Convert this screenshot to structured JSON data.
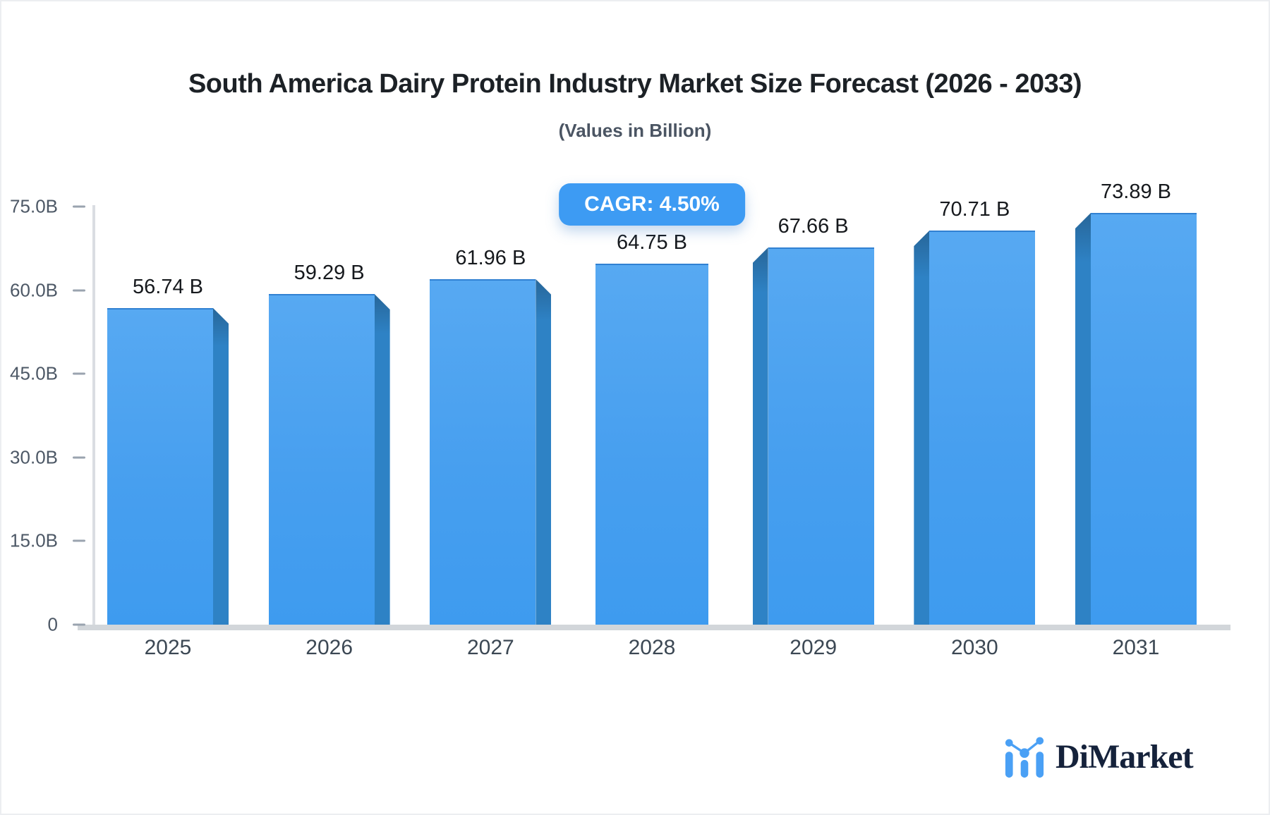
{
  "branding": {
    "logo_text": "DiMarket"
  },
  "chart_data": {
    "type": "bar",
    "title": "South America Dairy Protein Industry Market Size Forecast (2026 - 2033)",
    "subtitle": "(Values in Billion)",
    "annotation": "CAGR: 4.50%",
    "categories": [
      "2025",
      "2026",
      "2027",
      "2028",
      "2029",
      "2030",
      "2031"
    ],
    "values": [
      56.74,
      59.29,
      61.96,
      64.75,
      67.66,
      70.71,
      73.89
    ],
    "value_labels": [
      "56.74 B",
      "59.29 B",
      "61.96 B",
      "64.75 B",
      "67.66 B",
      "70.71 B",
      "73.89 B"
    ],
    "xlabel": "",
    "ylabel": "",
    "ylim": [
      0,
      75
    ],
    "yticks": [
      {
        "value": 75,
        "label": "75.0B"
      },
      {
        "value": 60,
        "label": "60.0B"
      },
      {
        "value": 45,
        "label": "45.0B"
      },
      {
        "value": 30,
        "label": "30.0B"
      },
      {
        "value": 15,
        "label": "15.0B"
      },
      {
        "value": 0,
        "label": "0"
      }
    ],
    "grid": false,
    "legend": false,
    "bar_style": "3d-beveled",
    "colors": {
      "bar_face_top": "#57a9f2",
      "bar_face_bottom": "#3e9bef",
      "bar_side": "#2e82c5",
      "bar_edge": "#3181d2",
      "badge_bg": "#3d9bf3",
      "badge_text": "#ffffff",
      "baseline": "#d2d6da",
      "axis_line": "#dadde2",
      "tick_dash": "#9aa3af",
      "title": "#1c2126",
      "subtitle": "#4b5563",
      "value_label": "#16191d",
      "year_label": "#3c4854",
      "ytick_label": "#4d5866",
      "logo_blue": "#4aa0f5",
      "logo_text": "#15223b"
    }
  }
}
